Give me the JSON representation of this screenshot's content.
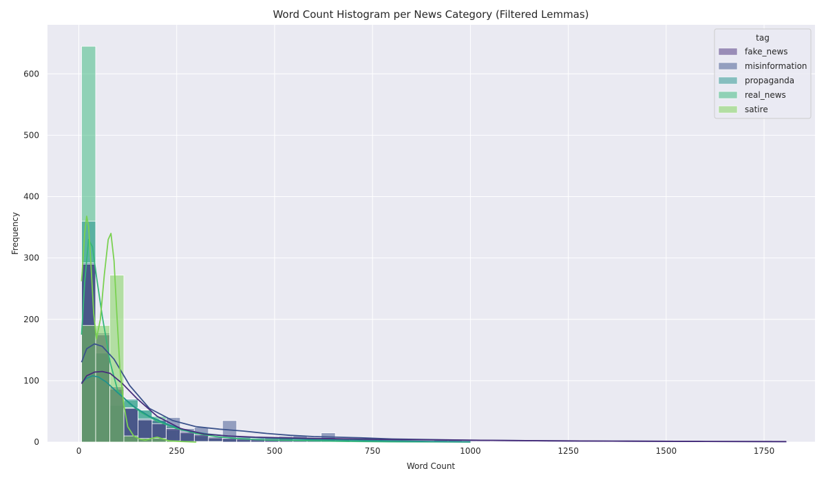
{
  "chart_data": {
    "type": "histogram",
    "title": "Word Count Histogram per News Category (Filtered Lemmas)",
    "xlabel": "Word Count",
    "ylabel": "Frequency",
    "xlim": [
      -80,
      1880
    ],
    "ylim": [
      0,
      680
    ],
    "xticks": [
      0,
      250,
      500,
      750,
      1000,
      1250,
      1500,
      1750
    ],
    "yticks": [
      0,
      100,
      200,
      300,
      400,
      500,
      600
    ],
    "bin_edges": [
      7,
      43,
      79,
      115,
      151,
      187,
      223,
      259,
      295,
      331,
      367,
      403,
      439,
      475,
      511,
      547,
      583,
      619,
      655,
      691,
      727,
      763,
      799,
      835,
      871,
      907,
      943,
      979,
      1015,
      1051,
      1087,
      1123,
      1159,
      1195,
      1231,
      1267,
      1303,
      1339,
      1375,
      1411,
      1447,
      1483,
      1519,
      1555,
      1591,
      1627,
      1663,
      1699,
      1735,
      1771,
      1807
    ],
    "grid": true,
    "legend": {
      "title": "tag",
      "position": "top-right",
      "entries": [
        "fake_news",
        "misinformation",
        "propaganda",
        "real_news",
        "satire"
      ]
    },
    "series": [
      {
        "name": "real_news",
        "color": "#35b779",
        "counts": [
          645,
          145,
          60,
          68,
          52,
          42,
          26,
          16,
          14,
          8,
          5,
          3,
          2,
          2,
          1,
          1,
          1,
          1,
          0,
          0,
          0,
          0,
          0,
          0,
          0,
          0,
          0,
          0,
          0,
          0,
          0,
          0,
          0,
          0,
          0,
          0,
          0,
          0,
          0,
          0,
          0,
          0,
          0,
          0,
          0,
          0,
          0,
          0,
          0,
          0
        ],
        "kde_x": [
          7,
          15,
          25,
          35,
          45,
          60,
          80,
          100,
          130,
          160,
          200,
          250,
          300,
          350,
          400,
          450,
          500,
          600,
          700,
          800,
          900,
          1000
        ],
        "kde_y": [
          175,
          260,
          330,
          318,
          270,
          205,
          130,
          82,
          62,
          48,
          34,
          22,
          14,
          9,
          6,
          4,
          3,
          2,
          1,
          0.5,
          0.3,
          0
        ]
      },
      {
        "name": "propaganda",
        "color": "#21918c",
        "counts": [
          360,
          145,
          86,
          70,
          52,
          35,
          20,
          14,
          10,
          8,
          5,
          4,
          3,
          2,
          1,
          1,
          1,
          0,
          0,
          0,
          0,
          0,
          0,
          0,
          0,
          0,
          0,
          0,
          0,
          0,
          0,
          0,
          0,
          0,
          0,
          0,
          0,
          0,
          0,
          0,
          0,
          0,
          0,
          0,
          0,
          0,
          0,
          0,
          0,
          0
        ],
        "kde_x": [
          7,
          20,
          35,
          50,
          70,
          100,
          140,
          180,
          230,
          280,
          330,
          380,
          430,
          500,
          600,
          700,
          800,
          900,
          1000
        ],
        "kde_y": [
          97,
          104,
          108,
          106,
          98,
          80,
          58,
          42,
          28,
          18,
          13,
          10,
          8,
          6,
          4,
          3,
          2,
          1,
          0.5
        ]
      },
      {
        "name": "misinformation",
        "color": "#3b528b",
        "counts": [
          292,
          178,
          86,
          56,
          38,
          36,
          40,
          22,
          24,
          6,
          35,
          8,
          6,
          4,
          10,
          10,
          5,
          15,
          6,
          6,
          5,
          3,
          2,
          2,
          2,
          3,
          3,
          2,
          2,
          1,
          1,
          1,
          1,
          1,
          1,
          1,
          1,
          1,
          0,
          0,
          0,
          0,
          0,
          0,
          0,
          0,
          0,
          0,
          1,
          2
        ],
        "kde_x": [
          7,
          20,
          40,
          60,
          90,
          130,
          180,
          240,
          300,
          360,
          420,
          480,
          540,
          600,
          660,
          720,
          800,
          900,
          1000,
          1200,
          1400,
          1600,
          1807
        ],
        "kde_y": [
          130,
          152,
          160,
          156,
          135,
          92,
          55,
          35,
          25,
          21,
          18,
          14,
          11,
          9,
          8,
          7,
          5,
          4,
          3,
          2,
          1.5,
          1,
          0.8
        ]
      },
      {
        "name": "fake_news",
        "color": "#472d7b",
        "counts": [
          290,
          175,
          90,
          55,
          36,
          30,
          22,
          16,
          12,
          8,
          6,
          5,
          4,
          8,
          8,
          4,
          4,
          4,
          3,
          2,
          2,
          2,
          1,
          1,
          1,
          1,
          1,
          1,
          1,
          1,
          1,
          1,
          1,
          1,
          1,
          1,
          1,
          1,
          1,
          1,
          1,
          1,
          1,
          1,
          1,
          1,
          1,
          1,
          1,
          2
        ],
        "kde_x": [
          7,
          20,
          40,
          60,
          80,
          110,
          150,
          200,
          260,
          320,
          380,
          450,
          520,
          600,
          700,
          800,
          900,
          1000,
          1200,
          1400,
          1600,
          1807
        ],
        "kde_y": [
          95,
          108,
          114,
          115,
          112,
          96,
          70,
          42,
          22,
          13,
          10,
          8,
          7,
          6,
          5,
          4,
          3.5,
          3,
          2,
          1.5,
          1,
          0.8
        ]
      },
      {
        "name": "satire",
        "color": "#7ad151",
        "counts": [
          190,
          190,
          272,
          10,
          6,
          6,
          2,
          1,
          1,
          1,
          0,
          0,
          0,
          0,
          0,
          0,
          0,
          0,
          0,
          0,
          0,
          0,
          0,
          0,
          0,
          0,
          0,
          0,
          0,
          0,
          0,
          0,
          0,
          0,
          0,
          0,
          0,
          0,
          0,
          0,
          0,
          0,
          0,
          0,
          0,
          0,
          0,
          0,
          0,
          0
        ],
        "kde_x": [
          7,
          15,
          20,
          25,
          30,
          38,
          45,
          55,
          65,
          75,
          82,
          90,
          97,
          105,
          115,
          125,
          140,
          155,
          170,
          185,
          200,
          215,
          230,
          260,
          300
        ],
        "kde_y": [
          262,
          340,
          368,
          352,
          300,
          210,
          168,
          200,
          272,
          330,
          340,
          295,
          210,
          120,
          60,
          25,
          10,
          5,
          3,
          6,
          8,
          5,
          2,
          1,
          0
        ]
      }
    ]
  }
}
